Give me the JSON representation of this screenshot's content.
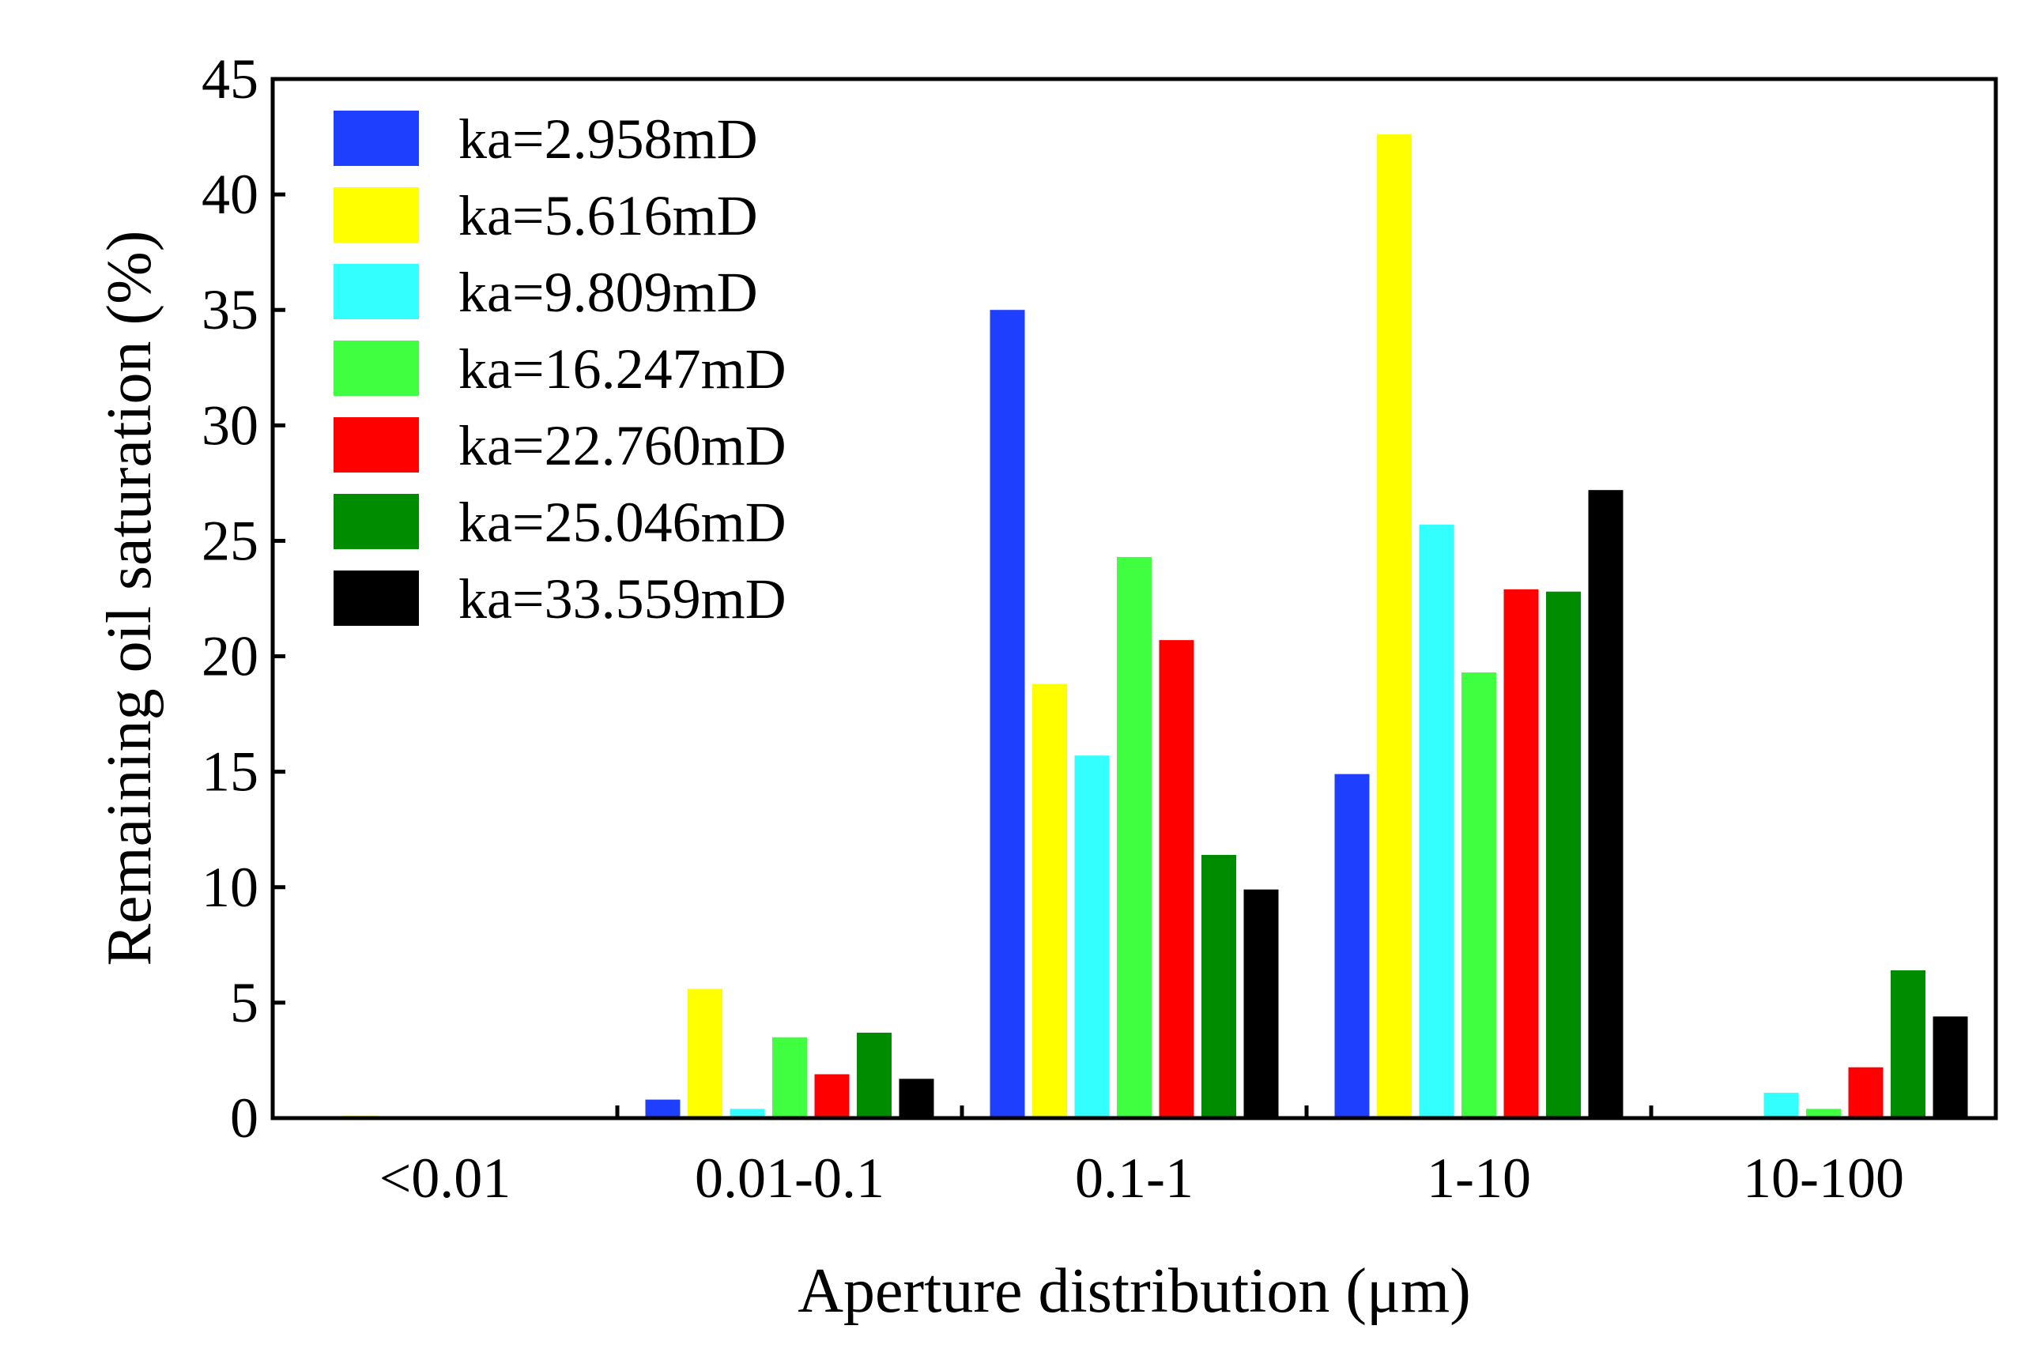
{
  "chart_data": {
    "type": "bar",
    "title": "",
    "xlabel": "Aperture distribution (μm)",
    "ylabel": "Remaining oil saturation (%)",
    "ylim": [
      0,
      45
    ],
    "yticks": [
      "0",
      "5",
      "10",
      "15",
      "20",
      "25",
      "30",
      "35",
      "40",
      "45"
    ],
    "categories": [
      "<0.01",
      "0.01-0.1",
      "0.1-1",
      "1-10",
      "10-100"
    ],
    "legend_position": "top-left",
    "grid": false,
    "series": [
      {
        "name": "ka=2.958mD",
        "color": "#1f3fff",
        "values": [
          0,
          0.8,
          35.0,
          14.9,
          0
        ]
      },
      {
        "name": "ka=5.616mD",
        "color": "#ffff00",
        "values": [
          0.1,
          5.6,
          18.8,
          42.6,
          0
        ]
      },
      {
        "name": "ka=9.809mD",
        "color": "#33ffff",
        "values": [
          0,
          0.4,
          15.7,
          25.7,
          1.1
        ]
      },
      {
        "name": "ka=16.247mD",
        "color": "#40ff40",
        "values": [
          0,
          3.5,
          24.3,
          19.3,
          0.4
        ]
      },
      {
        "name": "ka=22.760mD",
        "color": "#ff0000",
        "values": [
          0,
          1.9,
          20.7,
          22.9,
          2.2
        ]
      },
      {
        "name": "ka=25.046mD",
        "color": "#008c00",
        "values": [
          0,
          3.7,
          11.4,
          22.8,
          6.4
        ]
      },
      {
        "name": "ka=33.559mD",
        "color": "#000000",
        "values": [
          0,
          1.7,
          9.9,
          27.2,
          4.4
        ]
      }
    ]
  }
}
